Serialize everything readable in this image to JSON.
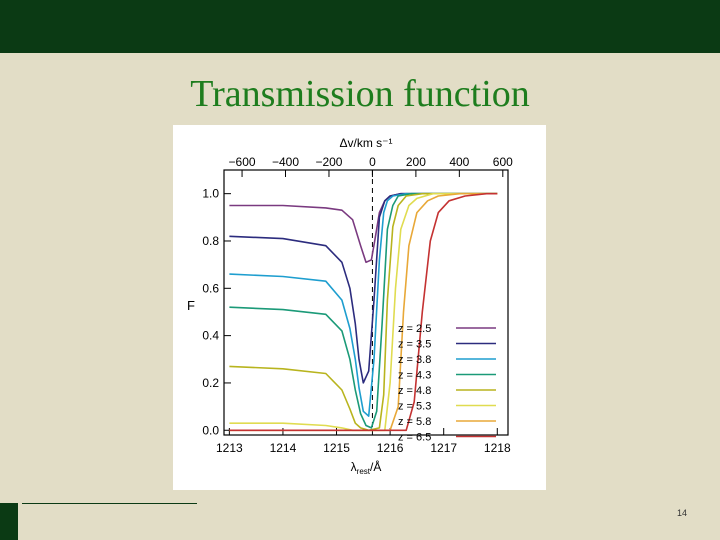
{
  "slide": {
    "title": "Transmission function",
    "page_number": "14",
    "colors": {
      "background": "#e2ddc6",
      "bar": "#0b3a14",
      "title": "#1e7d1e"
    }
  },
  "chart_data": {
    "type": "line",
    "title": "",
    "xlabel": "λrest/Å",
    "x_label_parts": {
      "base": "λ",
      "sub": "rest",
      "rest": "/Å"
    },
    "ylabel": "F",
    "top_axis_label": "Δv/km s⁻¹",
    "xlim": [
      1212.9,
      1218.2
    ],
    "ylim": [
      -0.02,
      1.1
    ],
    "x_ticks": [
      1213,
      1214,
      1215,
      1216,
      1217,
      1218
    ],
    "y_ticks": [
      0.0,
      0.2,
      0.4,
      0.6,
      0.8,
      1.0
    ],
    "top_ticks": [
      -600,
      -400,
      -200,
      0,
      200,
      400,
      600
    ],
    "top_tick_labels": [
      "−600",
      "−400",
      "−200",
      "0",
      "200",
      "400",
      "600"
    ],
    "reference_line_x": 1215.67,
    "legend_position": "right",
    "series": [
      {
        "name": "z = 2.5",
        "color": "#7a3a80",
        "x": [
          1213.0,
          1214.0,
          1214.8,
          1215.1,
          1215.3,
          1215.45,
          1215.55,
          1215.65,
          1215.72,
          1215.8,
          1215.9,
          1216.0,
          1216.2,
          1217.0,
          1218.0
        ],
        "y": [
          0.95,
          0.95,
          0.94,
          0.93,
          0.89,
          0.78,
          0.71,
          0.72,
          0.81,
          0.92,
          0.97,
          0.99,
          1.0,
          1.0,
          1.0
        ]
      },
      {
        "name": "z = 3.5",
        "color": "#2c2c7e",
        "x": [
          1213.0,
          1214.0,
          1214.8,
          1215.1,
          1215.25,
          1215.35,
          1215.42,
          1215.5,
          1215.6,
          1215.7,
          1215.8,
          1215.9,
          1216.0,
          1216.2,
          1217.0,
          1218.0
        ],
        "y": [
          0.82,
          0.81,
          0.78,
          0.71,
          0.6,
          0.45,
          0.3,
          0.2,
          0.25,
          0.55,
          0.9,
          0.97,
          0.99,
          1.0,
          1.0,
          1.0
        ]
      },
      {
        "name": "z = 3.8",
        "color": "#1e9ecf",
        "x": [
          1213.0,
          1214.0,
          1214.8,
          1215.1,
          1215.25,
          1215.35,
          1215.42,
          1215.5,
          1215.6,
          1215.7,
          1215.8,
          1215.88,
          1215.95,
          1216.05,
          1216.3,
          1217.0,
          1218.0
        ],
        "y": [
          0.66,
          0.65,
          0.63,
          0.55,
          0.43,
          0.3,
          0.18,
          0.08,
          0.06,
          0.3,
          0.72,
          0.92,
          0.97,
          0.99,
          1.0,
          1.0,
          1.0
        ]
      },
      {
        "name": "z = 4.3",
        "color": "#1b9a78",
        "x": [
          1213.0,
          1214.0,
          1214.8,
          1215.1,
          1215.25,
          1215.35,
          1215.45,
          1215.55,
          1215.65,
          1215.75,
          1215.85,
          1215.95,
          1216.05,
          1216.15,
          1216.4,
          1217.0,
          1218.0
        ],
        "y": [
          0.52,
          0.51,
          0.49,
          0.42,
          0.3,
          0.17,
          0.07,
          0.02,
          0.01,
          0.08,
          0.45,
          0.85,
          0.95,
          0.99,
          1.0,
          1.0,
          1.0
        ]
      },
      {
        "name": "z = 4.8",
        "color": "#b8b41e",
        "x": [
          1213.0,
          1214.0,
          1214.8,
          1215.1,
          1215.25,
          1215.35,
          1215.45,
          1215.6,
          1215.8,
          1215.88,
          1215.95,
          1216.05,
          1216.15,
          1216.3,
          1216.6,
          1217.0,
          1218.0
        ],
        "y": [
          0.27,
          0.26,
          0.24,
          0.17,
          0.09,
          0.03,
          0.01,
          0.0,
          0.01,
          0.15,
          0.55,
          0.86,
          0.95,
          0.99,
          1.0,
          1.0,
          1.0
        ]
      },
      {
        "name": "z = 5.3",
        "color": "#e0dc50",
        "x": [
          1213.0,
          1214.0,
          1214.8,
          1215.1,
          1215.3,
          1215.5,
          1215.9,
          1216.0,
          1216.1,
          1216.2,
          1216.35,
          1216.5,
          1216.8,
          1217.2,
          1218.0
        ],
        "y": [
          0.03,
          0.03,
          0.02,
          0.01,
          0.0,
          0.0,
          0.0,
          0.2,
          0.6,
          0.85,
          0.95,
          0.98,
          1.0,
          1.0,
          1.0
        ]
      },
      {
        "name": "z = 5.8",
        "color": "#e8a838",
        "x": [
          1213.0,
          1214.0,
          1215.0,
          1216.0,
          1216.15,
          1216.25,
          1216.35,
          1216.5,
          1216.7,
          1216.9,
          1217.3,
          1218.0
        ],
        "y": [
          0.0,
          0.0,
          0.0,
          0.0,
          0.1,
          0.5,
          0.78,
          0.92,
          0.97,
          0.99,
          1.0,
          1.0
        ]
      },
      {
        "name": "z = 6.5",
        "color": "#c43232",
        "x": [
          1213.0,
          1214.0,
          1215.0,
          1216.0,
          1216.3,
          1216.45,
          1216.6,
          1216.75,
          1216.9,
          1217.1,
          1217.4,
          1217.8,
          1218.0
        ],
        "y": [
          0.0,
          0.0,
          0.0,
          0.0,
          0.0,
          0.12,
          0.5,
          0.8,
          0.92,
          0.97,
          0.99,
          1.0,
          1.0
        ]
      }
    ]
  }
}
